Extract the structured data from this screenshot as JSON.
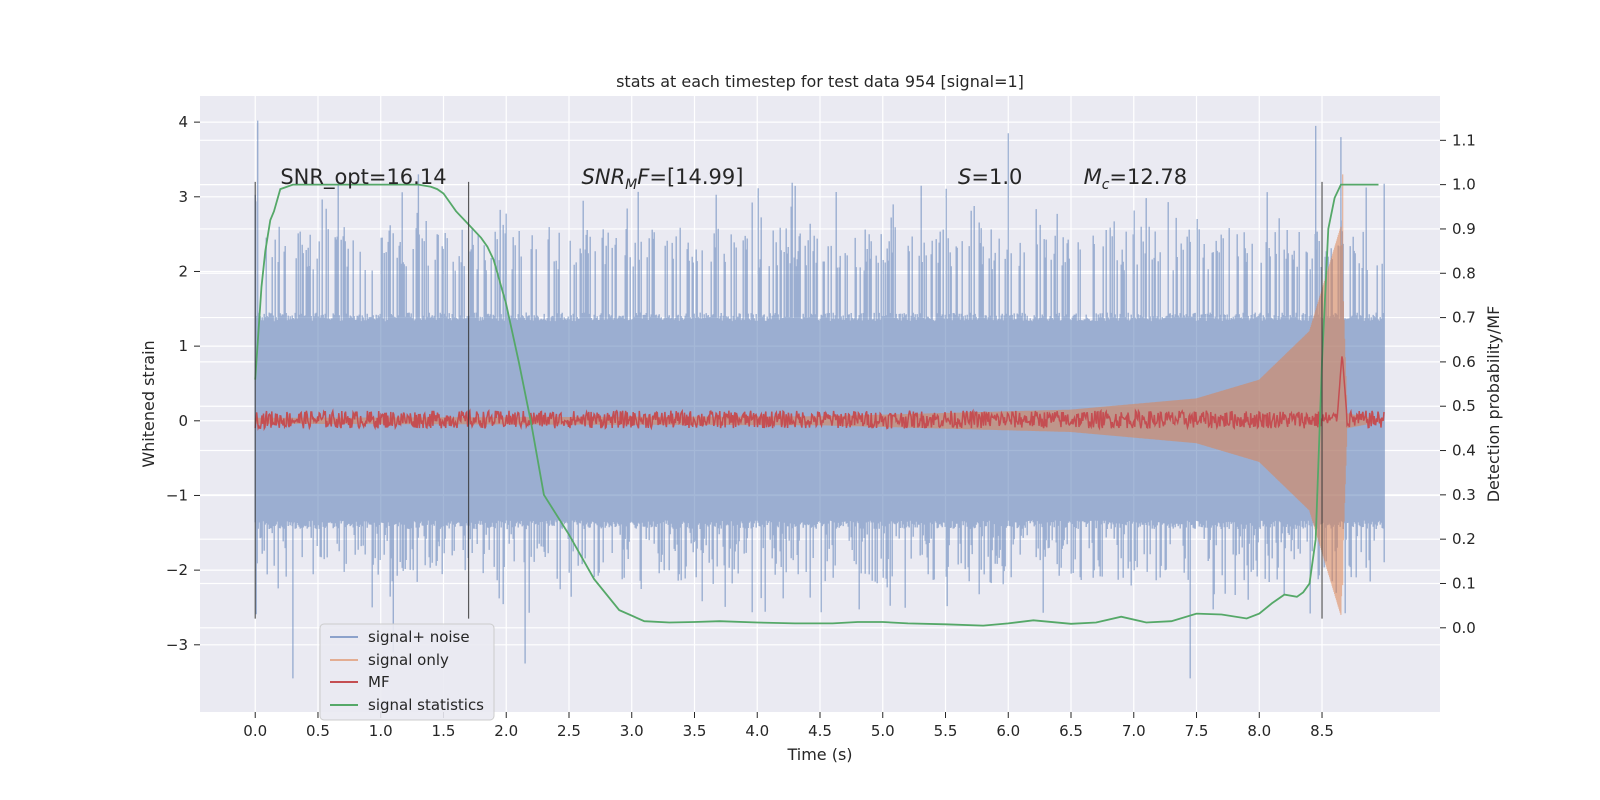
{
  "chart_data": {
    "type": "line",
    "title": "stats at each timestep for test data 954 [signal=1]",
    "xlabel": "Time (s)",
    "ylabel": "Whitened strain",
    "ylabel_right": "Detection probability/MF",
    "xlim": [
      -0.44,
      9.44
    ],
    "ylim": [
      -3.9,
      4.35
    ],
    "ylim_right": [
      -0.19,
      1.2
    ],
    "x_ticks": [
      0.0,
      0.5,
      1.0,
      1.5,
      2.0,
      2.5,
      3.0,
      3.5,
      4.0,
      4.5,
      5.0,
      5.5,
      6.0,
      6.5,
      7.0,
      7.5,
      8.0,
      8.5
    ],
    "x_tick_labels": [
      "0.0",
      "0.5",
      "1.0",
      "1.5",
      "2.0",
      "2.5",
      "3.0",
      "3.5",
      "4.0",
      "4.5",
      "5.0",
      "5.5",
      "6.0",
      "6.5",
      "7.0",
      "7.5",
      "8.0",
      "8.5"
    ],
    "y_ticks": [
      4,
      3,
      2,
      1,
      0,
      -1,
      -2,
      -3
    ],
    "y_tick_labels": [
      "4",
      "3",
      "2",
      "1",
      "0",
      "−1",
      "−2",
      "−3"
    ],
    "y_right_ticks": [
      1.1,
      1.0,
      0.9,
      0.8,
      0.7,
      0.6,
      0.5,
      0.4,
      0.3,
      0.2,
      0.1,
      0.0
    ],
    "y_right_tick_labels": [
      "1.1",
      "1.0",
      "0.9",
      "0.8",
      "0.7",
      "0.6",
      "0.5",
      "0.4",
      "0.3",
      "0.2",
      "0.1",
      "0.0"
    ],
    "grid": true,
    "legend_position": "lower-left",
    "annotations": [
      {
        "text": "SNR_opt=16.14",
        "x": 0.2,
        "y": 3.2
      },
      {
        "text": "SNR",
        "sub": "M",
        "suffix": "F=[14.99]",
        "italic": true,
        "x": 2.6,
        "y": 3.2
      },
      {
        "text": "S",
        "sub": "",
        "suffix": "=1.0",
        "italic": true,
        "x": 5.6,
        "y": 3.2
      },
      {
        "text": "M",
        "sub": "c",
        "suffix": "=12.78",
        "italic": true,
        "x": 6.6,
        "y": 3.2
      }
    ],
    "vlines": [
      {
        "x": 0.0,
        "y0": -2.65,
        "y1": 3.2
      },
      {
        "x": 1.7,
        "y0": -2.65,
        "y1": 3.2
      },
      {
        "x": 8.5,
        "y0": -2.65,
        "y1": 3.2
      }
    ],
    "series": [
      {
        "name": "signal+ noise",
        "color": "#4c72b0",
        "axis": "left",
        "t_range": [
          0.0,
          9.0
        ],
        "envelope": {
          "core": 1.45,
          "peaks_hi": [
            2.0,
            3.2
          ],
          "peaks_lo": [
            -1.5,
            -2.6
          ]
        }
      },
      {
        "name": "signal only",
        "color": "#dd8452",
        "axis": "left",
        "t_range": [
          0.0,
          9.0
        ],
        "amplitude_by_time": [
          [
            0.0,
            0.04
          ],
          [
            4.5,
            0.06
          ],
          [
            6.5,
            0.15
          ],
          [
            7.5,
            0.3
          ],
          [
            8.0,
            0.55
          ],
          [
            8.4,
            1.2
          ],
          [
            8.65,
            2.6
          ],
          [
            8.7,
            0.1
          ],
          [
            9.0,
            0.0
          ]
        ]
      },
      {
        "name": "MF",
        "color": "#c44e52",
        "axis": "right",
        "t_range": [
          0.0,
          9.0
        ],
        "baseline": 0.47,
        "spread": 0.02,
        "peak": {
          "x": 8.66,
          "y": 0.62
        }
      },
      {
        "name": "signal statistics",
        "color": "#55a868",
        "axis": "right",
        "x": [
          0.0,
          0.05,
          0.08,
          0.12,
          0.15,
          0.2,
          0.3,
          0.5,
          0.8,
          1.1,
          1.3,
          1.4,
          1.45,
          1.5,
          1.55,
          1.6,
          1.7,
          1.8,
          1.85,
          1.9,
          2.0,
          2.1,
          2.2,
          2.3,
          2.5,
          2.7,
          2.9,
          3.1,
          3.3,
          3.5,
          3.7,
          4.0,
          4.3,
          4.6,
          4.8,
          5.0,
          5.2,
          5.5,
          5.8,
          6.0,
          6.2,
          6.5,
          6.7,
          6.9,
          7.1,
          7.3,
          7.5,
          7.7,
          7.9,
          8.0,
          8.1,
          8.2,
          8.3,
          8.35,
          8.4,
          8.45,
          8.5,
          8.55,
          8.6,
          8.65,
          8.7,
          8.9,
          8.95
        ],
        "y": [
          0.56,
          0.77,
          0.85,
          0.92,
          0.94,
          0.99,
          1.0,
          1.0,
          1.0,
          1.0,
          1.0,
          0.995,
          0.99,
          0.98,
          0.96,
          0.94,
          0.91,
          0.88,
          0.86,
          0.83,
          0.73,
          0.6,
          0.46,
          0.3,
          0.21,
          0.11,
          0.04,
          0.015,
          0.012,
          0.013,
          0.015,
          0.012,
          0.01,
          0.01,
          0.013,
          0.013,
          0.01,
          0.008,
          0.005,
          0.01,
          0.017,
          0.009,
          0.012,
          0.025,
          0.012,
          0.015,
          0.032,
          0.03,
          0.021,
          0.032,
          0.055,
          0.075,
          0.07,
          0.08,
          0.1,
          0.2,
          0.6,
          0.9,
          0.97,
          1.0,
          1.0,
          1.0,
          1.0
        ]
      }
    ]
  }
}
